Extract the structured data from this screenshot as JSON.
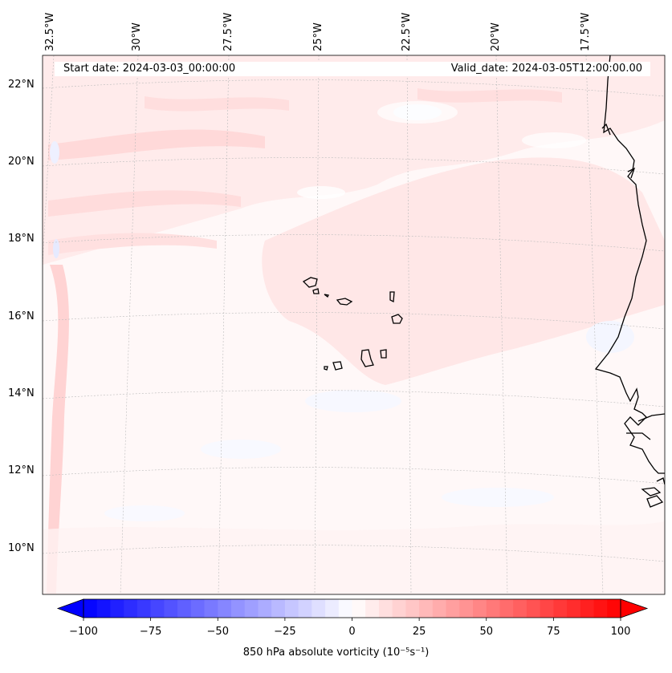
{
  "map": {
    "projection_note": "Lambert-like conic view of eastern tropical Atlantic",
    "start_date_label": "Start date: 2024-03-03_00:00:00",
    "valid_date_label": "Valid_date: 2024-03-05T12:00:00.00",
    "longitude_labels": [
      "32.5°W",
      "30°W",
      "27.5°W",
      "25°W",
      "22.5°W",
      "20°W",
      "17.5°W"
    ],
    "latitude_labels": [
      "22°N",
      "20°N",
      "18°N",
      "16°N",
      "14°N",
      "12°N",
      "10°N"
    ],
    "regions": [
      "Cape Verde Islands",
      "West African coast (Mauritania, Senegal, Gambia, Guinea-Bissau)"
    ]
  },
  "colorbar": {
    "caption": "850 hPa absolute vorticity (10⁻⁵s⁻¹)",
    "min": -100,
    "max": 100,
    "tick_values": [
      -100,
      -75,
      -50,
      -25,
      0,
      25,
      50,
      75,
      100
    ],
    "tick_labels": [
      "−100",
      "−75",
      "−50",
      "−25",
      "0",
      "25",
      "50",
      "75",
      "100"
    ],
    "levels_count": 40,
    "low_color": "#0000ff",
    "mid_color": "#ffffff",
    "high_color": "#ff0000"
  }
}
